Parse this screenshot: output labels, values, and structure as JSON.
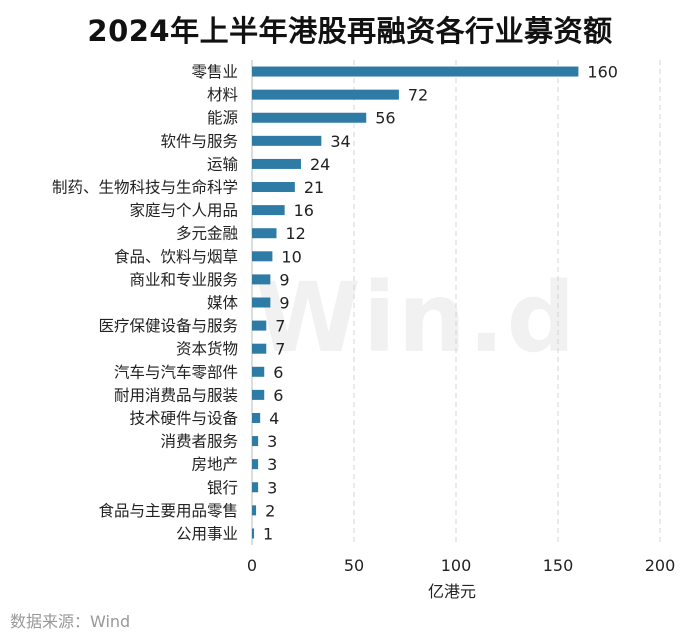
{
  "title": "2024年上半年港股再融资各行业募资额",
  "source": "数据来源：Wind",
  "watermark": "Win.d",
  "chart_data": {
    "type": "bar",
    "orientation": "horizontal",
    "title": "2024年上半年港股再融资各行业募资额",
    "xlabel": "亿港元",
    "ylabel": "",
    "xlim": [
      0,
      200
    ],
    "xticks": [
      0,
      50,
      100,
      150,
      200
    ],
    "grid": "vertical dashed",
    "bar_color": "#2E7BA6",
    "categories": [
      "零售业",
      "材料",
      "能源",
      "软件与服务",
      "运输",
      "制药、生物科技与生命科学",
      "家庭与个人用品",
      "多元金融",
      "食品、饮料与烟草",
      "商业和专业服务",
      "媒体",
      "医疗保健设备与服务",
      "资本货物",
      "汽车与汽车零部件",
      "耐用消费品与服装",
      "技术硬件与设备",
      "消费者服务",
      "房地产",
      "银行",
      "食品与主要用品零售",
      "公用事业"
    ],
    "values": [
      160,
      72,
      56,
      34,
      24,
      21,
      16,
      12,
      10,
      9,
      9,
      7,
      7,
      6,
      6,
      4,
      3,
      3,
      3,
      2,
      1
    ]
  }
}
